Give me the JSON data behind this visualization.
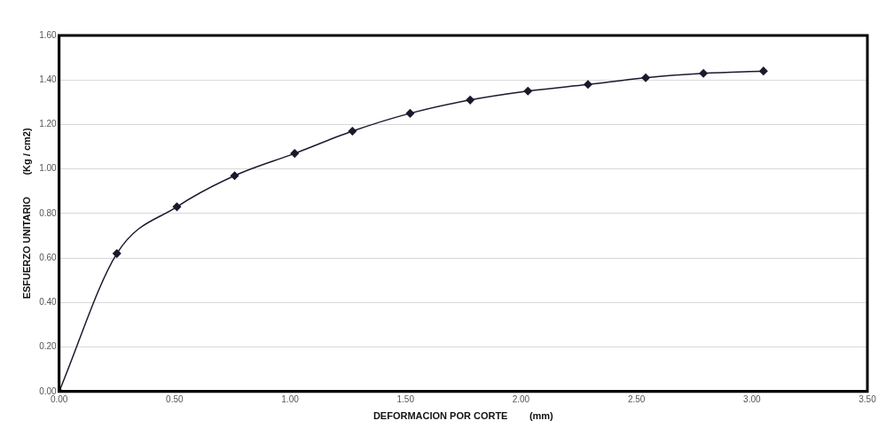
{
  "chart_data": {
    "type": "line",
    "xlabel": "DEFORMACION POR CORTE        (mm)",
    "ylabel": "ESFUERZO UNITARIO        (Kg / cm2)",
    "series": [
      {
        "color": "#1a1a2e",
        "x": [
          0,
          0.25,
          0.51,
          0.76,
          1.02,
          1.27,
          1.52,
          1.78,
          2.03,
          2.29,
          2.54,
          2.79,
          3.05
        ],
        "values": [
          0,
          0.62,
          0.83,
          0.97,
          1.07,
          1.17,
          1.25,
          1.31,
          1.35,
          1.38,
          1.41,
          1.43,
          1.44
        ]
      }
    ],
    "xlim": [
      0,
      3.5
    ],
    "xticks": [
      {
        "value": 0,
        "label": "0.00"
      },
      {
        "value": 0.5,
        "label": "0.50"
      },
      {
        "value": 1,
        "label": "1.00"
      },
      {
        "value": 1.5,
        "label": "1.50"
      },
      {
        "value": 2,
        "label": "2.00"
      },
      {
        "value": 2.5,
        "label": "2.50"
      },
      {
        "value": 3,
        "label": "3.00"
      },
      {
        "value": 3.5,
        "label": "3.50"
      }
    ],
    "ylim": [
      0,
      1.6
    ],
    "yticks": [
      {
        "value": 0,
        "label": "0.00"
      },
      {
        "value": 0.2,
        "label": "0.20"
      },
      {
        "value": 0.4,
        "label": "0.40"
      },
      {
        "value": 0.6,
        "label": "0.60"
      },
      {
        "value": 0.8,
        "label": "0.80"
      },
      {
        "value": 1,
        "label": "1.00"
      },
      {
        "value": 1.2,
        "label": "1.20"
      },
      {
        "value": 1.4,
        "label": "1.40"
      },
      {
        "value": 1.6,
        "label": "1.60"
      }
    ],
    "grid": "y",
    "marker": "diamond",
    "line_style": "solid",
    "legend": false
  }
}
